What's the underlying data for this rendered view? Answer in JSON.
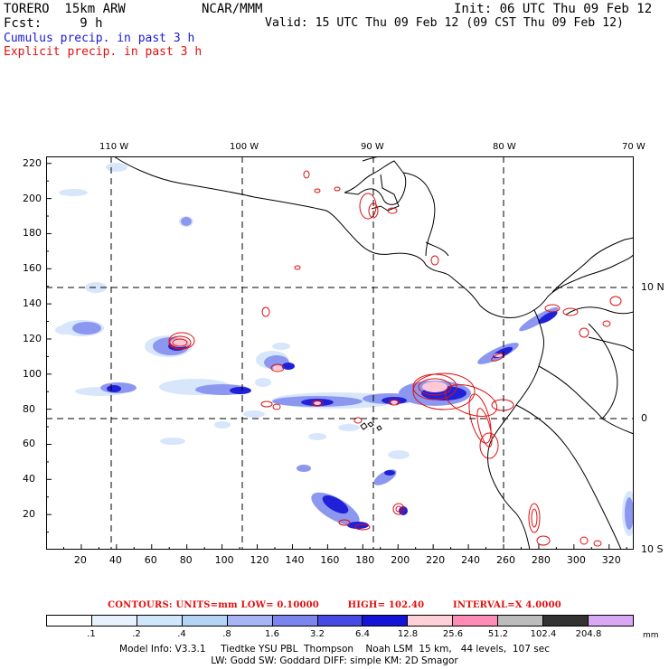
{
  "header": {
    "model": "TORERO  15km ARW",
    "institution": "NCAR/MMM",
    "init": "Init: 06 UTC Thu 09 Feb 12",
    "fcst": "Fcst:     9 h",
    "valid": "Valid: 15 UTC Thu 09 Feb 12 (09 CST Thu 09 Feb 12)",
    "field_cumulus": "Cumulus precip. in past 3 h",
    "field_explicit": "Explicit precip. in past 3 h"
  },
  "axes": {
    "top_longitudes": [
      "110 W",
      "100 W",
      "90 W",
      "80 W",
      "70 W"
    ],
    "right_latitudes": [
      "10 N",
      "0",
      "10 S"
    ],
    "y_ticks": [
      "20",
      "40",
      "60",
      "80",
      "100",
      "120",
      "140",
      "160",
      "180",
      "200",
      "220"
    ],
    "x_ticks": [
      "20",
      "40",
      "60",
      "80",
      "100",
      "120",
      "140",
      "160",
      "180",
      "200",
      "220",
      "240",
      "260",
      "280",
      "300",
      "320"
    ],
    "x_range": [
      0,
      334
    ],
    "y_range": [
      0,
      224
    ]
  },
  "contours": {
    "units": "CONTOURS:  UNITS=mm  LOW= 0.10000",
    "high": "HIGH=  102.40",
    "interval": "INTERVAL=X  4.0000"
  },
  "colorbar": {
    "labels": [
      ".1",
      ".2",
      ".4",
      ".8",
      "1.6",
      "3.2",
      "6.4",
      "12.8",
      "25.6",
      "51.2",
      "102.4",
      "204.8"
    ],
    "colors": [
      "#ffffff",
      "#e8f2ff",
      "#d0e6fb",
      "#b4d4f6",
      "#a8b4f4",
      "#7c84ee",
      "#4848e4",
      "#1414d8",
      "#ffd0d8",
      "#ff8cb4",
      "#bcbcbc",
      "#333333",
      "#d8a8f4"
    ],
    "unit": "mm"
  },
  "footer": {
    "line1": "Model Info: V3.3.1     Tiedtke YSU PBL  Thompson    Noah LSM  15 km,   44 levels,  107 sec",
    "line2": "LW: Godd SW: Goddard DIFF: simple KM: 2D Smagor"
  },
  "map_colors": {
    "coastline": "#000000",
    "grid": "#000000",
    "cumulus_light": "#d4e4fb",
    "cumulus_mid": "#8c96f0",
    "cumulus_strong": "#2828dc",
    "explicit_fill": "#ffc8d4",
    "explicit_contour": "#e01010"
  }
}
